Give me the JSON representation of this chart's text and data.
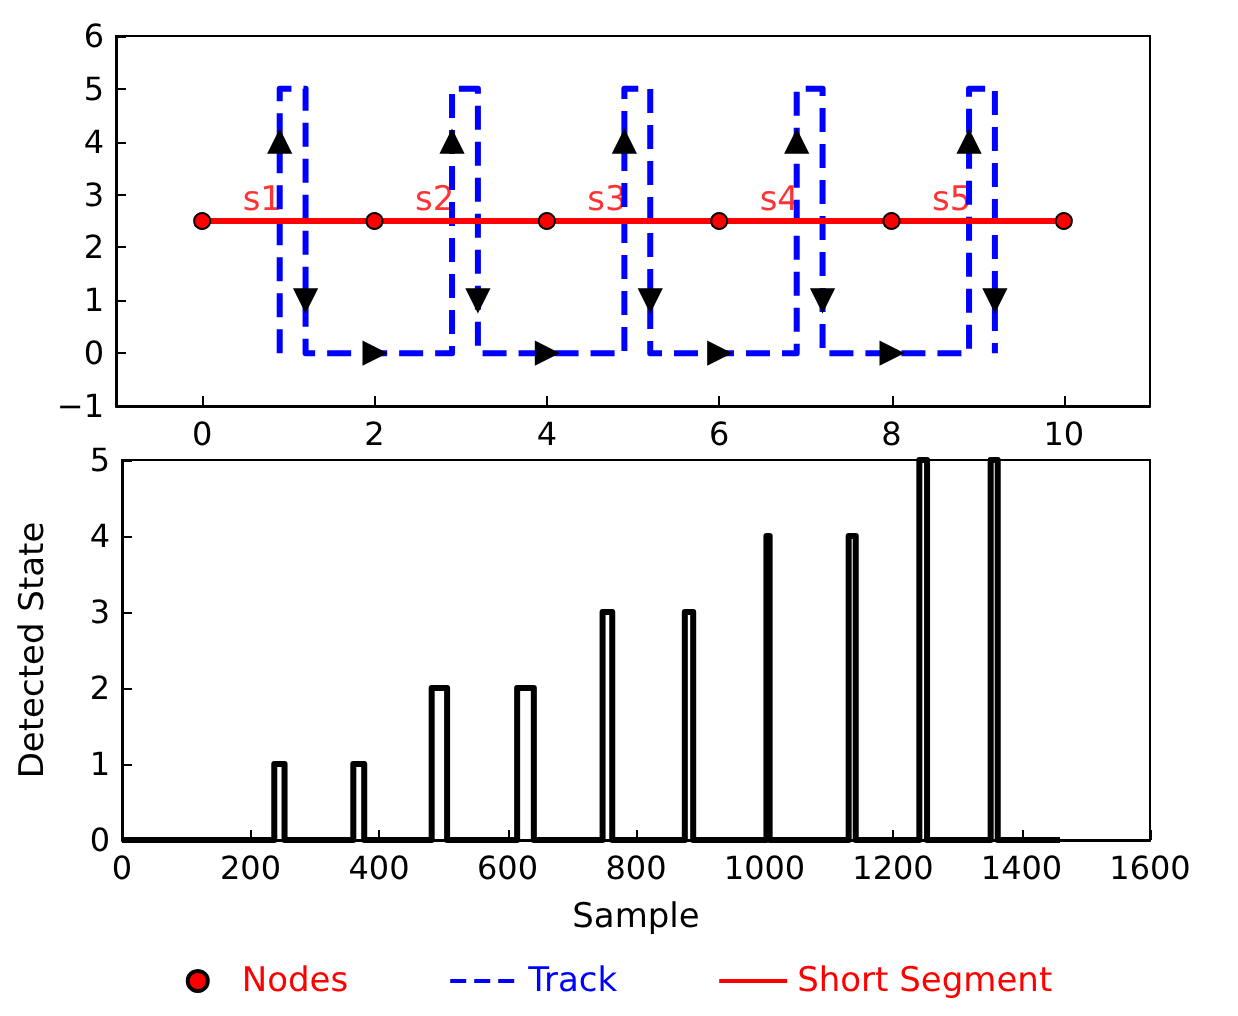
{
  "chart_data": [
    {
      "type": "line",
      "xlim": [
        -1,
        11
      ],
      "xticks": [
        0,
        2,
        4,
        6,
        8,
        10
      ],
      "ylim": [
        -1,
        6
      ],
      "yticks": [
        {
          "value": -1,
          "label": "−1"
        },
        0,
        1,
        2,
        3,
        4,
        5,
        6
      ],
      "legend": "bottom",
      "series": [
        {
          "name": "Nodes",
          "type": "scatter",
          "color": "#ff0000",
          "marker": "circle",
          "x": [
            0,
            2,
            4,
            6,
            8,
            10
          ],
          "values": [
            2.5,
            2.5,
            2.5,
            2.5,
            2.5,
            2.5
          ]
        },
        {
          "name": "Track",
          "color": "#0000ff",
          "line_style": "dashed",
          "marker": "none",
          "x": [
            0.9,
            0.9,
            1.2,
            1.2,
            2.9,
            2.9,
            3.2,
            3.2,
            4.9,
            4.9,
            5.2,
            5.2,
            6.9,
            6.9,
            7.2,
            7.2,
            8.9,
            8.9,
            9.2,
            9.2
          ],
          "values": [
            0,
            5,
            5,
            0,
            0,
            5,
            5,
            0,
            0,
            5,
            5,
            0,
            0,
            5,
            5,
            0,
            0,
            5,
            5,
            0
          ]
        },
        {
          "name": "Short Segment",
          "color": "#ff0000",
          "line_style": "solid",
          "marker": "none",
          "x": [
            0,
            10
          ],
          "values": [
            2.5,
            2.5
          ]
        },
        {
          "type": "scatter",
          "color": "#000000",
          "marker": "triangle",
          "x": [
            0.9,
            1.2,
            2,
            2.9,
            3.2,
            4,
            4.9,
            5.2,
            6,
            6.9,
            7.2,
            8,
            8.9,
            9.2
          ],
          "values": [
            4,
            1,
            0,
            4,
            1,
            0,
            4,
            1,
            0,
            4,
            1,
            0,
            4,
            1
          ]
        }
      ],
      "annotations": [
        {
          "text": "s1",
          "x": 1,
          "y": 2.5
        },
        {
          "text": "s2",
          "x": 3,
          "y": 2.5
        },
        {
          "text": "s3",
          "x": 5,
          "y": 2.5
        },
        {
          "text": "s4",
          "x": 7,
          "y": 2.5
        },
        {
          "text": "s5",
          "x": 9,
          "y": 2.5
        }
      ]
    },
    {
      "type": "line",
      "xlabel": "Sample",
      "ylabel": "Detected State",
      "xlim": [
        0,
        1600
      ],
      "xticks": [
        0,
        200,
        400,
        600,
        800,
        1000,
        1200,
        1400,
        1600
      ],
      "ylim": [
        0,
        5
      ],
      "yticks": [
        0,
        1,
        2,
        3,
        4,
        5
      ],
      "series": [
        {
          "color": "#000000",
          "marker": "none",
          "line_style": "solid",
          "x": [
            0,
            237,
            237,
            253,
            253,
            360,
            360,
            377,
            377,
            482,
            482,
            506,
            506,
            615,
            615,
            641,
            641,
            748,
            748,
            763,
            763,
            876,
            876,
            889,
            889,
            1003,
            1003,
            1008,
            1008,
            1131,
            1131,
            1142,
            1142,
            1241,
            1241,
            1253,
            1253,
            1352,
            1352,
            1363,
            1363,
            1460
          ],
          "values": [
            0,
            0,
            1,
            1,
            0,
            0,
            1,
            1,
            0,
            0,
            2,
            2,
            0,
            0,
            2,
            2,
            0,
            0,
            3,
            3,
            0,
            0,
            3,
            3,
            0,
            0,
            4,
            4,
            0,
            0,
            4,
            4,
            0,
            0,
            5,
            5,
            0,
            0,
            5,
            5,
            0,
            0
          ]
        }
      ]
    }
  ]
}
